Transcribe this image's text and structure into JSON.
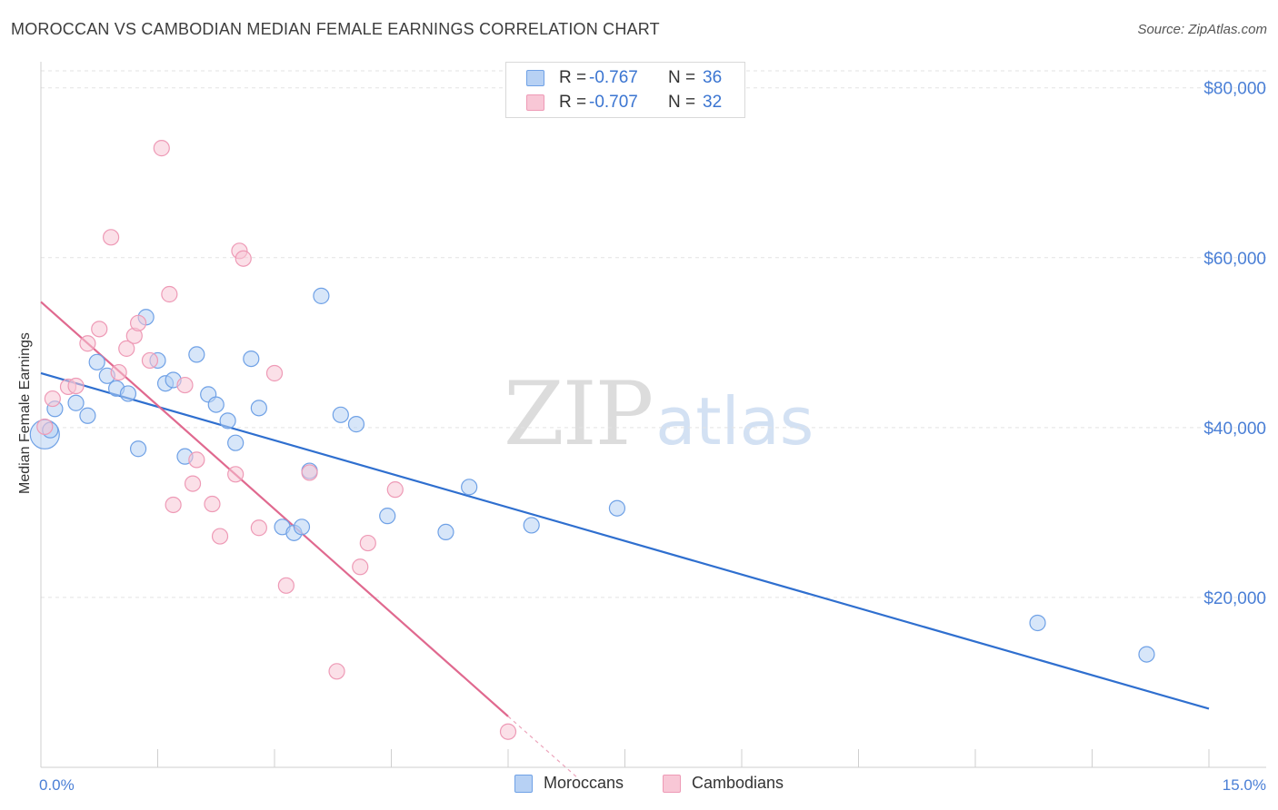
{
  "chart_data": {
    "type": "scatter",
    "title": "MOROCCAN VS CAMBODIAN MEDIAN FEMALE EARNINGS CORRELATION CHART",
    "source": "Source: ZipAtlas.com",
    "xlabel": "",
    "ylabel": "Median Female Earnings",
    "xlim": [
      0,
      15
    ],
    "ylim": [
      0,
      82000
    ],
    "x_tick_labels": [
      "0.0%",
      "15.0%"
    ],
    "y_ticks": [
      20000,
      40000,
      60000,
      80000
    ],
    "y_tick_labels": [
      "$20,000",
      "$40,000",
      "$60,000",
      "$80,000"
    ],
    "grid": true,
    "legend_stats": [
      {
        "r_label": "R =",
        "r_value": "-0.767",
        "n_label": "N =",
        "n_value": "36"
      },
      {
        "r_label": "R =",
        "r_value": "-0.707",
        "n_label": "N =",
        "n_value": "32"
      }
    ],
    "series": [
      {
        "name": "Moroccans",
        "color": "#6fa1e6",
        "fill": "#b7d1f4",
        "line_color": "#2f6fcf",
        "trend": {
          "x": [
            0,
            15
          ],
          "y": [
            46400,
            6900
          ]
        },
        "points": [
          [
            0.05,
            39200
          ],
          [
            0.18,
            42200
          ],
          [
            0.45,
            42900
          ],
          [
            0.6,
            41400
          ],
          [
            0.72,
            47700
          ],
          [
            0.85,
            46100
          ],
          [
            0.97,
            44600
          ],
          [
            1.12,
            44000
          ],
          [
            1.25,
            37500
          ],
          [
            1.35,
            53000
          ],
          [
            1.5,
            47900
          ],
          [
            1.6,
            45200
          ],
          [
            1.7,
            45600
          ],
          [
            1.85,
            36600
          ],
          [
            2.0,
            48600
          ],
          [
            2.15,
            43900
          ],
          [
            2.25,
            42700
          ],
          [
            2.4,
            40800
          ],
          [
            2.5,
            38200
          ],
          [
            2.7,
            48100
          ],
          [
            2.8,
            42300
          ],
          [
            3.1,
            28300
          ],
          [
            3.25,
            27600
          ],
          [
            3.35,
            28300
          ],
          [
            3.45,
            34900
          ],
          [
            3.6,
            55500
          ],
          [
            3.85,
            41500
          ],
          [
            4.05,
            40400
          ],
          [
            4.45,
            29600
          ],
          [
            5.2,
            27700
          ],
          [
            5.5,
            33000
          ],
          [
            6.3,
            28500
          ],
          [
            7.4,
            30500
          ],
          [
            12.8,
            17000
          ],
          [
            14.2,
            13300
          ],
          [
            0.12,
            39700
          ]
        ]
      },
      {
        "name": "Cambodians",
        "color": "#ee9ab6",
        "fill": "#f8c7d6",
        "line_color": "#e0698f",
        "trend": {
          "x": [
            0,
            6.0
          ],
          "y": [
            54800,
            6000
          ]
        },
        "trend_dashed": {
          "x": [
            6.0,
            6.9
          ],
          "y": [
            6000,
            -1300
          ]
        },
        "points": [
          [
            0.05,
            40100
          ],
          [
            0.15,
            43400
          ],
          [
            0.35,
            44800
          ],
          [
            0.45,
            44900
          ],
          [
            0.6,
            49900
          ],
          [
            0.75,
            51600
          ],
          [
            0.9,
            62400
          ],
          [
            1.0,
            46500
          ],
          [
            1.1,
            49300
          ],
          [
            1.2,
            50800
          ],
          [
            1.25,
            52300
          ],
          [
            1.4,
            47900
          ],
          [
            1.55,
            72900
          ],
          [
            1.65,
            55700
          ],
          [
            1.7,
            30900
          ],
          [
            1.85,
            45000
          ],
          [
            1.95,
            33400
          ],
          [
            2.0,
            36200
          ],
          [
            2.2,
            31000
          ],
          [
            2.3,
            27200
          ],
          [
            2.5,
            34500
          ],
          [
            2.55,
            60800
          ],
          [
            2.6,
            59900
          ],
          [
            2.8,
            28200
          ],
          [
            3.0,
            46400
          ],
          [
            3.15,
            21400
          ],
          [
            3.45,
            34700
          ],
          [
            3.8,
            11300
          ],
          [
            4.1,
            23600
          ],
          [
            4.2,
            26400
          ],
          [
            4.55,
            32700
          ],
          [
            6.0,
            4200
          ]
        ]
      }
    ]
  }
}
